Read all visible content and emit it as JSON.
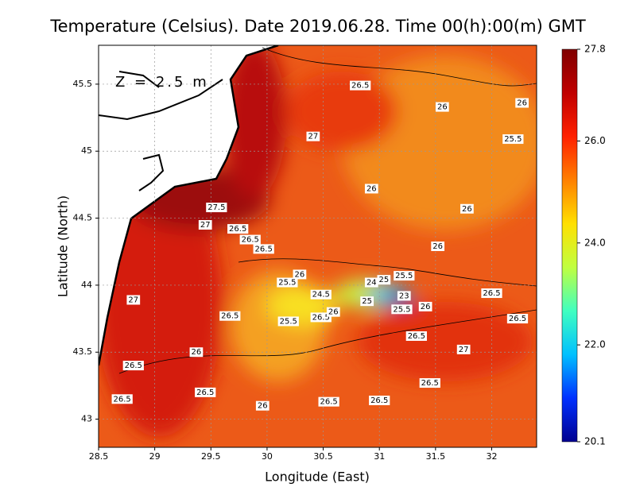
{
  "chart_data": {
    "type": "heatmap",
    "title": "Temperature (Celsius). Date 2019.06.28. Time 00(h):00(m) GMT",
    "annotation": "Z = 2.5 m",
    "x_label": "Longitude (East)",
    "y_label": "Latitude (North)",
    "xlim": [
      28.5,
      32.4
    ],
    "ylim": [
      42.79,
      45.79
    ],
    "xticks": [
      28.5,
      29,
      29.5,
      30,
      30.5,
      31,
      31.5,
      32
    ],
    "yticks": [
      43,
      43.5,
      44,
      44.5,
      45,
      45.5
    ],
    "grid": true,
    "colorbar": {
      "lim": [
        20.1,
        27.8
      ],
      "ticks": [
        20.1,
        {
          "value": 22,
          "label": "22.0"
        },
        {
          "value": 24,
          "label": "24.0"
        },
        {
          "value": 26,
          "label": "26.0"
        },
        27.8
      ],
      "colormap": [
        "#000090",
        "#0030ff",
        "#00c0ff",
        "#40ffc0",
        "#c0ff40",
        "#ffe000",
        "#ff8000",
        "#ff2000",
        "#c00000",
        "#800000"
      ]
    },
    "contour_labels": [
      {
        "x": 30.83,
        "y": 45.49,
        "value": 26.5
      },
      {
        "x": 31.56,
        "y": 45.33,
        "value": 26
      },
      {
        "x": 32.27,
        "y": 45.36,
        "value": 26
      },
      {
        "x": 30.41,
        "y": 45.11,
        "value": 27
      },
      {
        "x": 32.19,
        "y": 45.09,
        "value": 25.5
      },
      {
        "x": 30.93,
        "y": 44.72,
        "value": 26
      },
      {
        "x": 31.78,
        "y": 44.57,
        "value": 26
      },
      {
        "x": 29.55,
        "y": 44.58,
        "value": 27.5
      },
      {
        "x": 29.45,
        "y": 44.45,
        "value": 27
      },
      {
        "x": 29.74,
        "y": 44.42,
        "value": 26.5
      },
      {
        "x": 29.85,
        "y": 44.34,
        "value": 26.5
      },
      {
        "x": 29.97,
        "y": 44.27,
        "value": 26.5
      },
      {
        "x": 31.52,
        "y": 44.29,
        "value": 26
      },
      {
        "x": 30.29,
        "y": 44.08,
        "value": 26
      },
      {
        "x": 30.18,
        "y": 44.02,
        "value": 25.5
      },
      {
        "x": 31.22,
        "y": 44.07,
        "value": 25.5
      },
      {
        "x": 30.93,
        "y": 44.02,
        "value": 24
      },
      {
        "x": 31.04,
        "y": 44.04,
        "value": 25
      },
      {
        "x": 30.48,
        "y": 43.93,
        "value": 24.5
      },
      {
        "x": 31.22,
        "y": 43.92,
        "value": 23
      },
      {
        "x": 30.89,
        "y": 43.88,
        "value": 25
      },
      {
        "x": 31.2,
        "y": 43.82,
        "value": 25.5
      },
      {
        "x": 31.41,
        "y": 43.84,
        "value": 26
      },
      {
        "x": 32.0,
        "y": 43.94,
        "value": 26.5
      },
      {
        "x": 28.81,
        "y": 43.89,
        "value": 27
      },
      {
        "x": 29.67,
        "y": 43.77,
        "value": 26.5
      },
      {
        "x": 30.19,
        "y": 43.73,
        "value": 25.5
      },
      {
        "x": 30.48,
        "y": 43.76,
        "value": 26.5
      },
      {
        "x": 30.59,
        "y": 43.8,
        "value": 26
      },
      {
        "x": 32.23,
        "y": 43.75,
        "value": 26.5
      },
      {
        "x": 31.33,
        "y": 43.62,
        "value": 26.5
      },
      {
        "x": 31.75,
        "y": 43.52,
        "value": 27
      },
      {
        "x": 29.37,
        "y": 43.5,
        "value": 26
      },
      {
        "x": 28.81,
        "y": 43.4,
        "value": 26.5
      },
      {
        "x": 31.45,
        "y": 43.27,
        "value": 26.5
      },
      {
        "x": 28.71,
        "y": 43.15,
        "value": 26.5
      },
      {
        "x": 29.45,
        "y": 43.2,
        "value": 26.5
      },
      {
        "x": 29.96,
        "y": 43.1,
        "value": 26
      },
      {
        "x": 30.55,
        "y": 43.13,
        "value": 26.5
      },
      {
        "x": 31.0,
        "y": 43.14,
        "value": 26.5
      }
    ]
  }
}
